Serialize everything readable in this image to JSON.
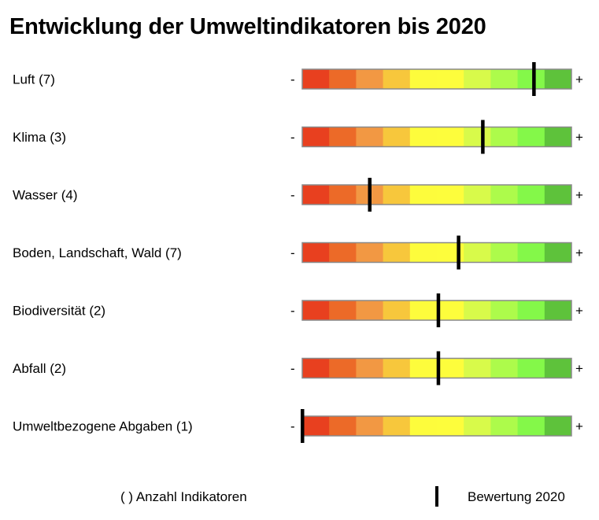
{
  "title": "Entwicklung der Umweltindikatoren bis 2020",
  "legend": {
    "count_label": "( ) Anzahl Indikatoren",
    "rating_label": "Bewertung 2020"
  },
  "scale": {
    "min_label": "-",
    "max_label": "+"
  },
  "segment_colors": [
    "#e8401f",
    "#ec6a28",
    "#f29843",
    "#f7c73c",
    "#fdfc3c",
    "#fdfd3c",
    "#d8fa4a",
    "#adfb4b",
    "#84f849",
    "#5ec23b"
  ],
  "chart_data": {
    "type": "bar",
    "title": "Entwicklung der Umweltindikatoren bis 2020",
    "scale_range": [
      0,
      1
    ],
    "categories": [
      "Luft (7)",
      "Klima (3)",
      "Wasser (4)",
      "Boden, Landschaft, Wald (7)",
      "Biodiversität (2)",
      "Abfall (2)",
      "Umweltbezogene Abgaben (1)"
    ],
    "values": [
      0.86,
      0.67,
      0.25,
      0.58,
      0.505,
      0.505,
      0.0
    ]
  }
}
